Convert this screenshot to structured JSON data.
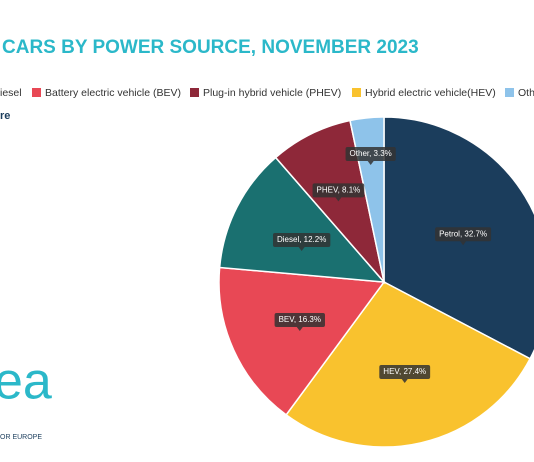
{
  "chart_data": {
    "type": "pie",
    "title": "CARS BY POWER SOURCE, NOVEMBER 2023",
    "subtitle": "re",
    "legend": [
      {
        "label": "iesel",
        "color": "#1a7070"
      },
      {
        "label": "Battery electric vehicle (BEV)",
        "color": "#e84855"
      },
      {
        "label": "Plug-in hybrid vehicle (PHEV)",
        "color": "#8e2839"
      },
      {
        "label": "Hybrid electric vehicle(HEV)",
        "color": "#f9c22e"
      },
      {
        "label": "Oth",
        "color": "#8ec3ea"
      }
    ],
    "categories": [
      "Petrol",
      "HEV",
      "BEV",
      "Diesel",
      "PHEV",
      "Other"
    ],
    "values": [
      32.7,
      27.4,
      16.3,
      12.2,
      8.1,
      3.3
    ],
    "value_labels": [
      "Petrol, 32.7%",
      "HEV, 27.4%",
      "BEV, 16.3%",
      "Diesel, 12.2%",
      "PHEV, 8.1%",
      "Other, 3.3%"
    ],
    "colors": [
      "#1b3d5c",
      "#f9c22e",
      "#e84855",
      "#1a7070",
      "#8e2839",
      "#8ec3ea"
    ],
    "logo": {
      "text": "ea",
      "subtext": "OR EUROPE"
    }
  }
}
